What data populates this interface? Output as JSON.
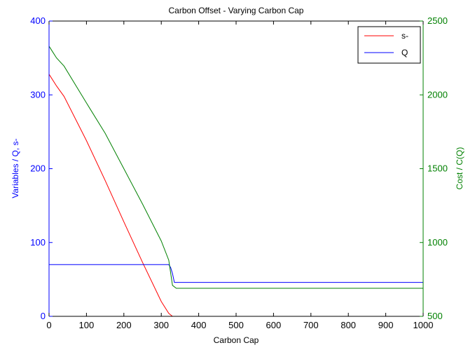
{
  "chart_data": {
    "type": "line",
    "title": "Carbon Offset - Varying Carbon Cap",
    "xlabel": "Carbon Cap",
    "ylabel_left": "Variables / Q, s-",
    "ylabel_right": "Cost / C(Q)",
    "xlim": [
      0,
      1000
    ],
    "ylim_left": [
      0,
      400
    ],
    "ylim_right": [
      500,
      2500
    ],
    "xticks": [
      0,
      100,
      200,
      300,
      400,
      500,
      600,
      700,
      800,
      900,
      1000
    ],
    "yticks_left": [
      0,
      100,
      200,
      300,
      400
    ],
    "yticks_right": [
      500,
      1000,
      1500,
      2000,
      2500
    ],
    "grid": false,
    "legend_position": "top-right",
    "series": [
      {
        "name": "s-",
        "axis": "left",
        "color": "#ff0000",
        "x": [
          0,
          20,
          40,
          100,
          150,
          200,
          250,
          300,
          320,
          330,
          1000
        ],
        "values": [
          328,
          312,
          298,
          238,
          184,
          128,
          73,
          20,
          4,
          0,
          0
        ]
      },
      {
        "name": "Q",
        "axis": "left",
        "color": "#0000ff",
        "x": [
          0,
          320,
          325,
          330,
          335,
          1000
        ],
        "values": [
          70,
          70,
          66,
          58,
          46,
          46
        ]
      },
      {
        "axis": "right",
        "color": "#008000",
        "x": [
          0,
          10,
          20,
          40,
          100,
          150,
          200,
          250,
          300,
          320,
          330,
          340,
          1000
        ],
        "values": [
          2330,
          2290,
          2250,
          2195,
          1945,
          1740,
          1500,
          1260,
          1010,
          880,
          710,
          690,
          690
        ]
      }
    ]
  }
}
